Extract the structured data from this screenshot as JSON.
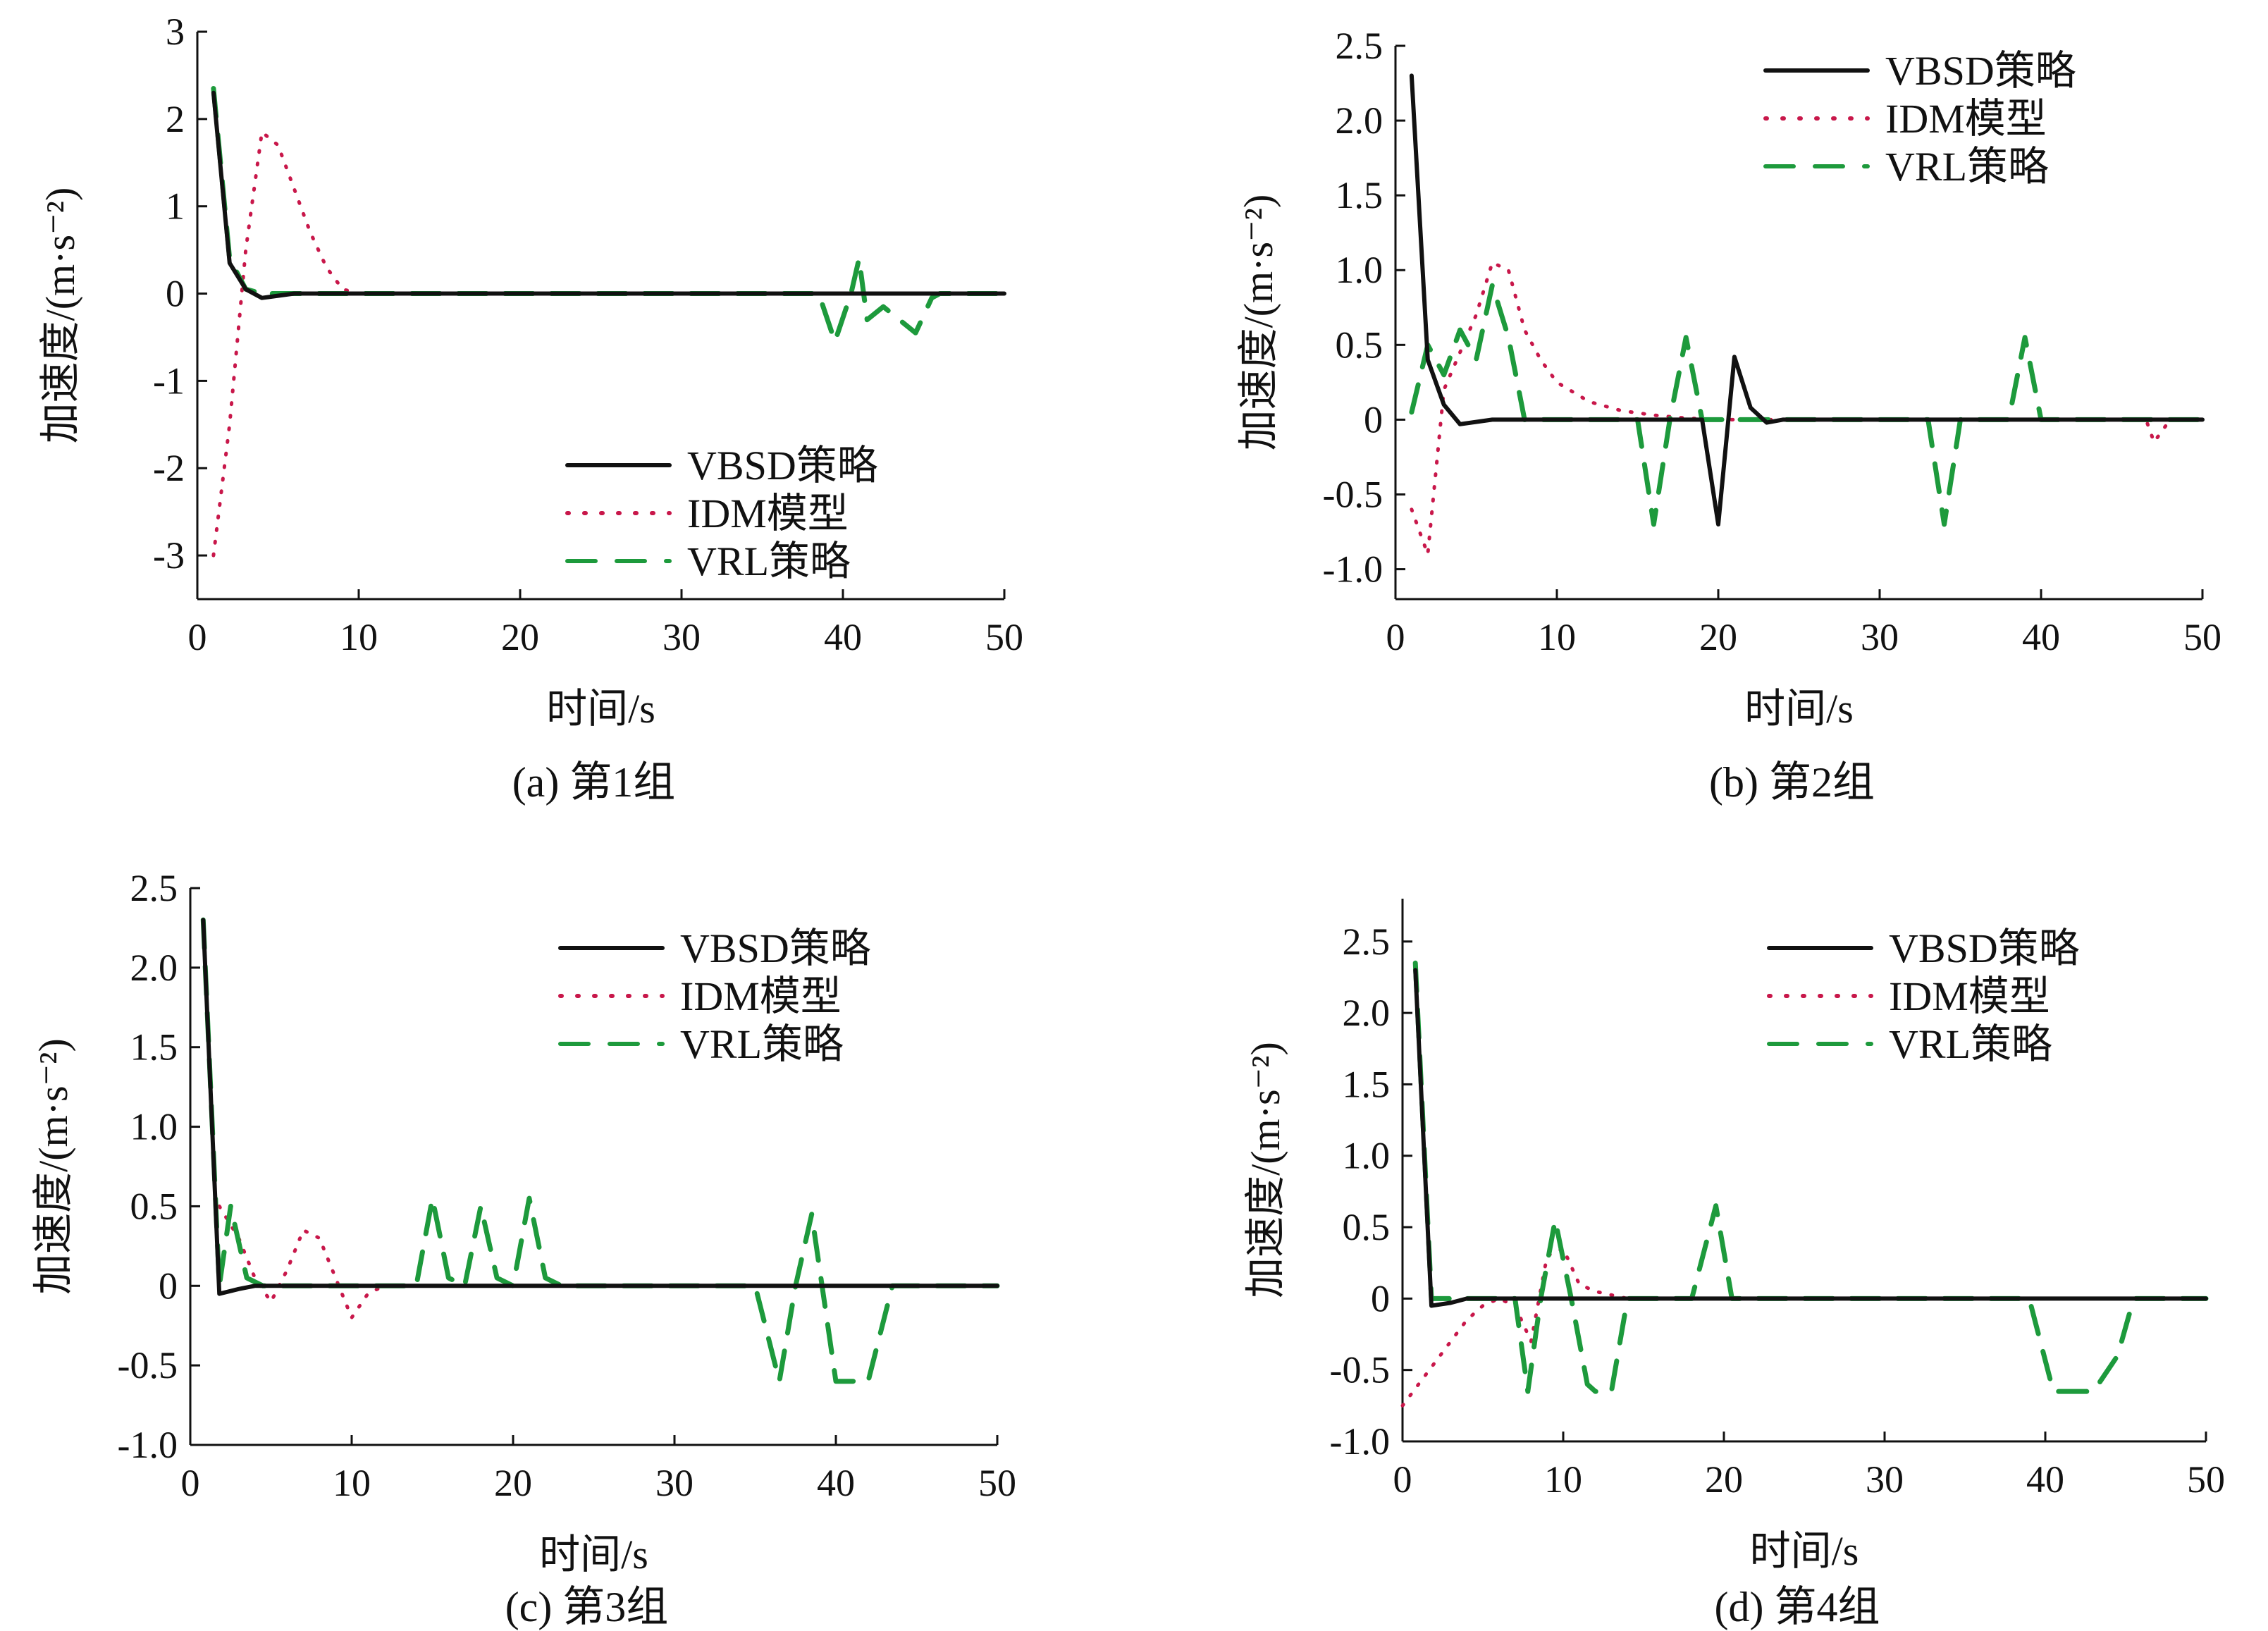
{
  "figure": {
    "colors": {
      "VBSD": "#111111",
      "IDM": "#c8174a",
      "VRL": "#1d9a3c",
      "axis": "#111111"
    },
    "legend_placement": "upper-right (a: lower-right)"
  },
  "chart_data": [
    {
      "id": "a",
      "type": "line",
      "caption": "(a) 第1组",
      "xlabel": "时间/s",
      "ylabel": "加速度/(m·s⁻²)",
      "xlim": [
        0,
        50
      ],
      "ylim": [
        -3.5,
        3
      ],
      "xticks": [
        0,
        10,
        20,
        30,
        40,
        50
      ],
      "xtick_labels": [
        "0",
        "10",
        "20",
        "30",
        "40",
        "50"
      ],
      "yticks": [
        3,
        2,
        1,
        0,
        -1,
        -2,
        -3
      ],
      "ytick_labels": [
        "3",
        "2",
        "1",
        "0",
        "-1",
        "-2",
        "-3"
      ],
      "legend_pos": "lower-right",
      "series": [
        {
          "key": "VBSD",
          "name": "VBSD策略",
          "style": "solid",
          "x": [
            1,
            2,
            3,
            4,
            6,
            10,
            20,
            30,
            40,
            50
          ],
          "y": [
            2.3,
            0.35,
            0.05,
            -0.05,
            0,
            0,
            0,
            0,
            0,
            0
          ]
        },
        {
          "key": "IDM",
          "name": "IDM模型",
          "style": "dotted",
          "x": [
            1,
            2,
            3,
            4,
            5,
            6,
            7,
            8,
            9,
            10,
            20,
            30,
            40,
            50
          ],
          "y": [
            -3.0,
            -1.5,
            0.5,
            1.85,
            1.7,
            1.2,
            0.7,
            0.3,
            0.05,
            0,
            0,
            0,
            0,
            0
          ]
        },
        {
          "key": "VRL",
          "name": "VRL策略",
          "style": "dashed",
          "x": [
            1,
            2,
            3,
            4,
            6,
            10,
            20,
            30,
            38.5,
            39.5,
            40.5,
            41,
            41.5,
            42.5,
            43.5,
            44.5,
            45.5,
            46,
            50
          ],
          "y": [
            2.35,
            0.4,
            0.05,
            0,
            0,
            0,
            0,
            0,
            0,
            -0.55,
            0,
            0.4,
            -0.3,
            -0.15,
            -0.3,
            -0.45,
            -0.05,
            0,
            0
          ]
        }
      ]
    },
    {
      "id": "b",
      "type": "line",
      "caption": "(b) 第2组",
      "xlabel": "时间/s",
      "ylabel": "加速度/(m·s⁻²)",
      "xlim": [
        0,
        50
      ],
      "ylim": [
        -1.2,
        2.5
      ],
      "xticks": [
        0,
        10,
        20,
        30,
        40,
        50
      ],
      "xtick_labels": [
        "0",
        "10",
        "20",
        "30",
        "40",
        "50"
      ],
      "yticks": [
        2.5,
        2.0,
        1.5,
        1.0,
        0.5,
        0,
        -0.5,
        -1.0
      ],
      "ytick_labels": [
        "2.5",
        "2.0",
        "1.5",
        "1.0",
        "0.5",
        "0",
        "-0.5",
        "-1.0"
      ],
      "legend_pos": "upper-right",
      "series": [
        {
          "key": "VBSD",
          "name": "VBSD策略",
          "style": "solid",
          "x": [
            1,
            2,
            3,
            4,
            6,
            10,
            19,
            20,
            21,
            22,
            23,
            24,
            30,
            40,
            50
          ],
          "y": [
            2.3,
            0.4,
            0.1,
            -0.03,
            0,
            0,
            0,
            -0.7,
            0.42,
            0.08,
            -0.02,
            0,
            0,
            0,
            0
          ]
        },
        {
          "key": "IDM",
          "name": "IDM模型",
          "style": "dotted",
          "x": [
            1,
            1.5,
            2,
            3,
            4,
            5,
            6,
            7,
            8,
            9,
            10,
            12,
            14,
            16,
            18,
            20,
            30,
            40,
            46.5,
            47,
            48,
            50
          ],
          "y": [
            -0.6,
            -0.75,
            -0.9,
            0.2,
            0.45,
            0.7,
            1.05,
            1.0,
            0.6,
            0.4,
            0.25,
            0.12,
            0.06,
            0.03,
            0.01,
            0,
            0,
            0,
            0,
            -0.15,
            0,
            0
          ]
        },
        {
          "key": "VRL",
          "name": "VRL策略",
          "style": "dashed",
          "x": [
            1,
            2,
            3,
            4,
            5,
            6,
            7,
            8,
            10,
            15,
            16,
            17,
            18,
            19,
            25,
            33,
            34,
            35,
            38,
            39,
            40,
            41,
            50
          ],
          "y": [
            0.05,
            0.5,
            0.3,
            0.6,
            0.4,
            0.9,
            0.55,
            0,
            0,
            0,
            -0.7,
            0,
            0.55,
            0,
            0,
            0,
            -0.7,
            0,
            0,
            0.55,
            0,
            0,
            0
          ]
        }
      ]
    },
    {
      "id": "c",
      "type": "line",
      "caption": "(c) 第3组",
      "xlabel": "时间/s",
      "ylabel": "加速度/(m·s⁻²)",
      "xlim": [
        0,
        50
      ],
      "ylim": [
        -1.0,
        2.5
      ],
      "xticks": [
        0,
        10,
        20,
        30,
        40,
        50
      ],
      "xtick_labels": [
        "0",
        "10",
        "20",
        "30",
        "40",
        "50"
      ],
      "yticks": [
        2.5,
        2.0,
        1.5,
        1.0,
        0.5,
        0,
        -0.5,
        -1.0
      ],
      "ytick_labels": [
        "2.5",
        "2.0",
        "1.5",
        "1.0",
        "0.5",
        "0",
        "-0.5",
        "-1.0"
      ],
      "legend_pos": "upper-right",
      "series": [
        {
          "key": "VBSD",
          "name": "VBSD策略",
          "style": "solid",
          "x": [
            0.8,
            1.8,
            3,
            4,
            6,
            10,
            20,
            30,
            40,
            50
          ],
          "y": [
            2.3,
            -0.05,
            -0.02,
            0,
            0,
            0,
            0,
            0,
            0,
            0
          ]
        },
        {
          "key": "IDM",
          "name": "IDM模型",
          "style": "dotted",
          "x": [
            1.8,
            3,
            4,
            5,
            6,
            7,
            8,
            9,
            10,
            11,
            12,
            14,
            20,
            30,
            40,
            50
          ],
          "y": [
            0.5,
            0.3,
            0.05,
            -0.1,
            0.1,
            0.35,
            0.3,
            0.05,
            -0.2,
            -0.05,
            0,
            0,
            0,
            0,
            0,
            0
          ]
        },
        {
          "key": "VRL",
          "name": "VRL策略",
          "style": "dashed",
          "x": [
            0.8,
            1.8,
            2.5,
            3.5,
            4.5,
            6,
            14,
            15,
            16,
            17,
            18,
            19,
            20,
            21,
            22,
            23,
            35,
            36.5,
            37.5,
            38.5,
            40,
            42,
            43.5,
            44,
            50
          ],
          "y": [
            2.3,
            0,
            0.5,
            0.05,
            0,
            0,
            0,
            0.55,
            0.05,
            0,
            0.5,
            0.05,
            0,
            0.55,
            0.05,
            0,
            0,
            -0.6,
            0,
            0.45,
            -0.6,
            -0.6,
            0,
            0,
            0
          ]
        }
      ]
    },
    {
      "id": "d",
      "type": "line",
      "caption": "(d) 第4组",
      "xlabel": "时间/s",
      "ylabel": "加速度/(m·s⁻²)",
      "xlim": [
        0,
        50
      ],
      "ylim": [
        -1.0,
        2.8
      ],
      "xticks": [
        0,
        10,
        20,
        30,
        40,
        50
      ],
      "xtick_labels": [
        "0",
        "10",
        "20",
        "30",
        "40",
        "50"
      ],
      "yticks": [
        2.5,
        2.0,
        1.5,
        1.0,
        0.5,
        0,
        -0.5,
        -1.0
      ],
      "ytick_labels": [
        "2.5",
        "2.0",
        "1.5",
        "1.0",
        "0.5",
        "0",
        "-0.5",
        "-1.0"
      ],
      "legend_pos": "upper-right",
      "series": [
        {
          "key": "VBSD",
          "name": "VBSD策略",
          "style": "solid",
          "x": [
            0.8,
            1.8,
            3,
            4,
            6,
            10,
            20,
            30,
            40,
            50
          ],
          "y": [
            2.3,
            -0.05,
            -0.03,
            0,
            0,
            0,
            0,
            0,
            0,
            0
          ]
        },
        {
          "key": "IDM",
          "name": "IDM模型",
          "style": "dotted",
          "x": [
            0,
            1,
            2,
            3,
            4,
            5,
            6,
            7,
            8,
            9,
            10,
            11,
            12,
            14,
            16,
            18,
            20,
            30,
            40,
            50
          ],
          "y": [
            -0.75,
            -0.6,
            -0.45,
            -0.3,
            -0.15,
            -0.05,
            0,
            -0.05,
            -0.3,
            0.3,
            0.35,
            0.1,
            0.05,
            0,
            0,
            0,
            0,
            0,
            0,
            0
          ]
        },
        {
          "key": "VRL",
          "name": "VRL策略",
          "style": "dashed",
          "x": [
            0.8,
            1.8,
            3,
            6,
            7,
            7.8,
            8.6,
            9.5,
            10.5,
            11.5,
            12,
            13,
            14,
            16,
            18,
            19.5,
            20.5,
            25,
            39,
            40.5,
            43,
            44.5,
            45.5,
            50
          ],
          "y": [
            2.35,
            0,
            0,
            0,
            0,
            -0.65,
            0,
            0.55,
            0,
            -0.6,
            -0.65,
            -0.65,
            0,
            0,
            0,
            0.65,
            0,
            0,
            0,
            -0.65,
            -0.65,
            -0.4,
            0,
            0
          ]
        }
      ]
    }
  ]
}
